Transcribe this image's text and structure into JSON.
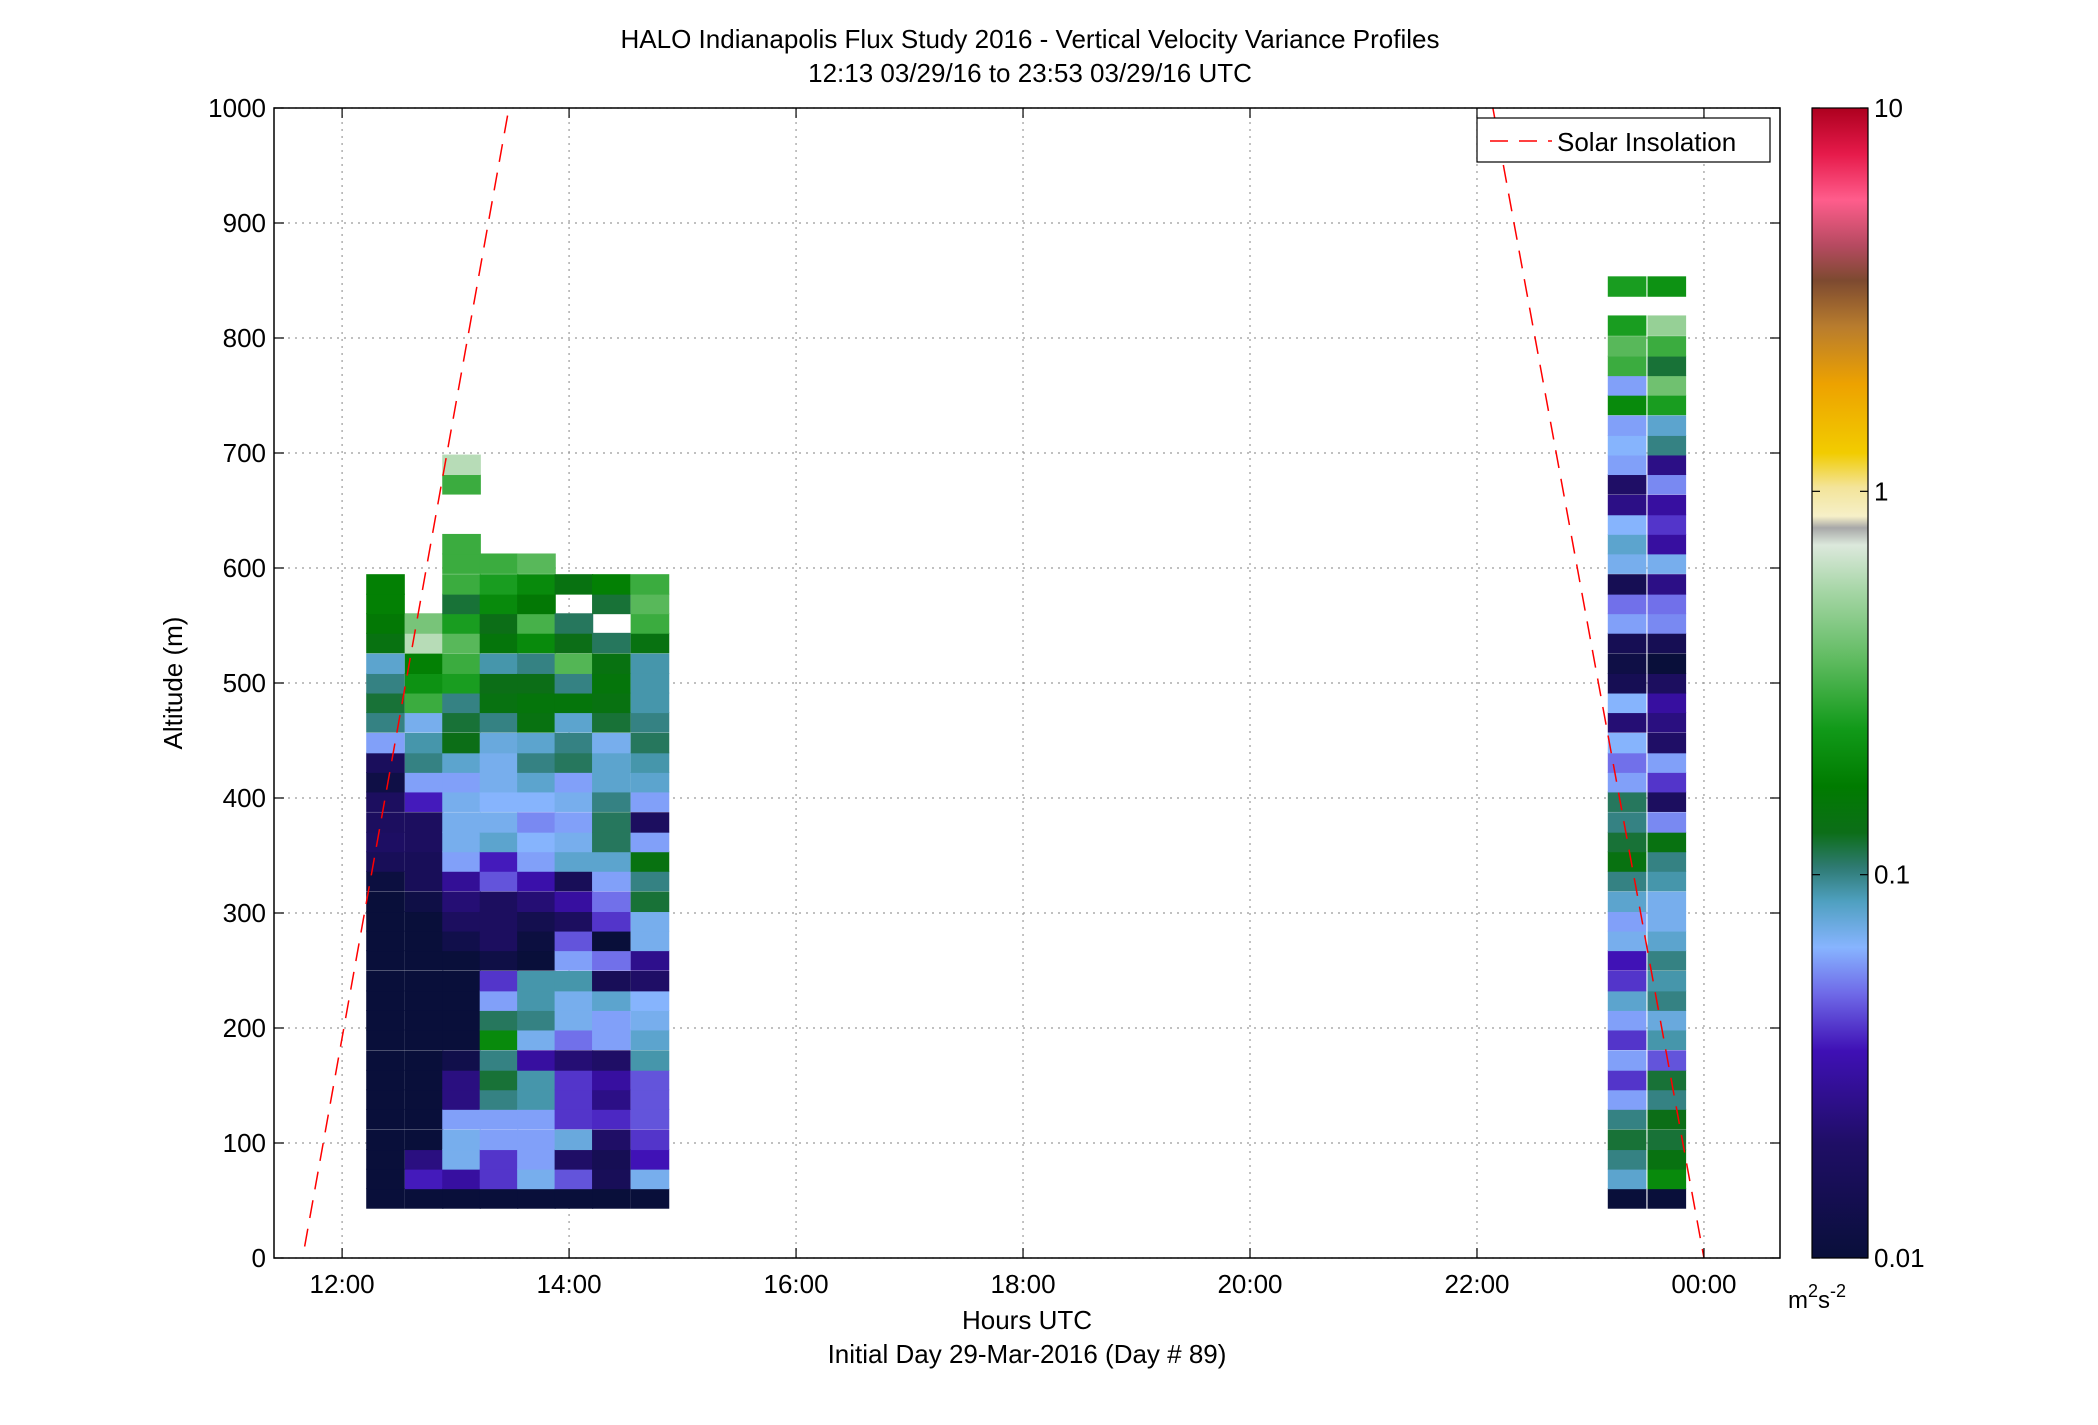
{
  "chart_data": {
    "type": "heatmap",
    "title": "HALO Indianapolis Flux Study 2016 - Vertical Velocity Variance Profiles",
    "subtitle": "12:13 03/29/16 to 23:53 03/29/16  UTC",
    "xlabel": "Hours UTC",
    "xlabel2": "Initial Day 29-Mar-2016 (Day # 89)",
    "ylabel": "Altitude (m)",
    "xlim": [
      11.4,
      24.67
    ],
    "ylim": [
      0,
      1000
    ],
    "xticks": [
      12,
      14,
      16,
      18,
      20,
      22,
      24
    ],
    "xtick_labels": [
      "12:00",
      "14:00",
      "16:00",
      "18:00",
      "20:00",
      "22:00",
      "00:00"
    ],
    "yticks": [
      0,
      100,
      200,
      300,
      400,
      500,
      600,
      700,
      800,
      900,
      1000
    ],
    "ytick_labels": [
      "0",
      "100",
      "200",
      "300",
      "400",
      "500",
      "600",
      "700",
      "800",
      "900",
      "1000"
    ],
    "grid": true,
    "legend": {
      "position": "top-right",
      "entries": [
        "Solar Insolation"
      ]
    },
    "colorbar": {
      "scale": "log",
      "range": [
        0.01,
        10
      ],
      "tick_values": [
        0.01,
        0.1,
        1,
        10
      ],
      "tick_labels": [
        "0.01",
        "0.1",
        "1",
        "10"
      ],
      "unit_base": "m",
      "unit_exp1": "2",
      "unit_mid": "s",
      "unit_exp2": "-2"
    },
    "series": [
      {
        "name": "Solar Insolation",
        "type": "line",
        "style": "dashed",
        "color": "#ff0000",
        "segments": [
          [
            [
              11.67,
              10
            ],
            [
              13.47,
              1000
            ]
          ],
          [
            [
              22.14,
              1000
            ],
            [
              24.0,
              0
            ]
          ]
        ]
      }
    ],
    "altitude_bins_m": [
      52,
      69,
      86,
      103,
      121,
      138,
      155,
      172,
      190,
      207,
      224,
      241,
      259,
      276,
      293,
      310,
      328,
      345,
      362,
      379,
      397,
      414,
      431,
      448,
      466,
      483,
      500,
      517,
      535,
      552,
      569,
      586,
      604,
      621,
      638,
      655,
      673,
      690,
      707,
      724,
      742,
      759,
      776,
      793,
      811,
      828,
      845
    ],
    "profiles": [
      {
        "t": 12.38,
        "v": [
          0.01,
          0.01,
          0.01,
          0.01,
          0.01,
          0.01,
          0.01,
          0.01,
          0.01,
          0.01,
          0.01,
          0.01,
          0.01,
          0.01,
          0.01,
          0.01,
          0.011,
          0.016,
          0.019,
          0.018,
          0.018,
          0.012,
          0.017,
          0.06,
          0.1,
          0.12,
          0.1,
          0.08,
          0.14,
          0.16,
          0.18,
          0.18,
          null,
          null,
          null,
          null,
          null,
          null,
          null,
          null,
          null,
          null,
          null,
          null,
          null,
          null,
          null
        ]
      },
      {
        "t": 12.72,
        "v": [
          0.01,
          0.036,
          0.024,
          0.01,
          0.01,
          0.01,
          0.01,
          0.01,
          0.01,
          0.01,
          0.01,
          0.01,
          0.01,
          0.01,
          0.01,
          0.012,
          0.016,
          0.016,
          0.018,
          0.018,
          0.036,
          0.06,
          0.1,
          0.09,
          0.07,
          0.3,
          0.22,
          0.18,
          0.6,
          0.42,
          null,
          null,
          null,
          null,
          null,
          null,
          null,
          null,
          null,
          null,
          null,
          null,
          null,
          null,
          null,
          null,
          null
        ]
      },
      {
        "t": 13.05,
        "v": [
          0.01,
          0.03,
          0.07,
          0.07,
          0.06,
          0.024,
          0.024,
          0.013,
          0.01,
          0.01,
          0.01,
          0.01,
          0.01,
          0.013,
          0.018,
          0.022,
          0.028,
          0.06,
          0.07,
          0.07,
          0.07,
          0.06,
          0.08,
          0.13,
          0.12,
          0.1,
          0.25,
          0.3,
          0.35,
          0.25,
          0.12,
          0.3,
          0.3,
          0.3,
          null,
          null,
          0.3,
          0.6,
          null,
          null,
          null,
          null,
          null,
          null,
          null,
          null,
          null
        ]
      },
      {
        "t": 13.38,
        "v": [
          0.01,
          0.04,
          0.04,
          0.06,
          0.06,
          0.1,
          0.12,
          0.1,
          0.2,
          0.11,
          0.06,
          0.04,
          0.012,
          0.018,
          0.018,
          0.018,
          0.045,
          0.036,
          0.08,
          0.07,
          0.065,
          0.07,
          0.07,
          0.075,
          0.1,
          0.14,
          0.13,
          0.09,
          0.15,
          0.13,
          0.2,
          0.25,
          0.3,
          null,
          null,
          null,
          null,
          null,
          null,
          null,
          null,
          null,
          null,
          null,
          null,
          null,
          null
        ]
      },
      {
        "t": 13.71,
        "v": [
          0.01,
          0.07,
          0.06,
          0.06,
          0.06,
          0.09,
          0.09,
          0.03,
          0.07,
          0.1,
          0.09,
          0.09,
          0.01,
          0.011,
          0.014,
          0.022,
          0.032,
          0.06,
          0.065,
          0.055,
          0.065,
          0.08,
          0.1,
          0.08,
          0.14,
          0.15,
          0.13,
          0.1,
          0.2,
          0.32,
          0.16,
          0.2,
          0.35,
          null,
          null,
          null,
          null,
          null,
          null,
          null,
          null,
          null,
          null,
          null,
          null,
          null,
          null
        ]
      },
      {
        "t": 14.04,
        "v": [
          0.01,
          0.045,
          0.02,
          0.075,
          0.04,
          0.04,
          0.04,
          0.022,
          0.05,
          0.07,
          0.07,
          0.09,
          0.06,
          0.045,
          0.018,
          0.03,
          0.016,
          0.08,
          0.07,
          0.06,
          0.07,
          0.06,
          0.11,
          0.1,
          0.08,
          0.15,
          0.1,
          0.34,
          0.13,
          0.11,
          null,
          0.14,
          null,
          null,
          null,
          null,
          null,
          null,
          null,
          null,
          null,
          null,
          null,
          null,
          null,
          null,
          null
        ]
      },
      {
        "t": 14.37,
        "v": [
          0.01,
          0.016,
          0.015,
          0.02,
          0.038,
          0.025,
          0.03,
          0.02,
          0.06,
          0.06,
          0.08,
          0.016,
          0.05,
          0.01,
          0.04,
          0.05,
          0.06,
          0.08,
          0.11,
          0.11,
          0.1,
          0.08,
          0.08,
          0.07,
          0.12,
          0.14,
          0.15,
          0.14,
          0.11,
          null,
          0.12,
          0.18,
          null,
          null,
          null,
          null,
          null,
          null,
          null,
          null,
          null,
          null,
          null,
          null,
          null,
          null,
          null
        ]
      },
      {
        "t": 14.71,
        "v": [
          0.01,
          0.07,
          0.035,
          0.04,
          0.045,
          0.045,
          0.045,
          0.09,
          0.08,
          0.07,
          0.065,
          0.02,
          0.026,
          0.07,
          0.07,
          0.12,
          0.1,
          0.14,
          0.06,
          0.018,
          0.06,
          0.08,
          0.09,
          0.11,
          0.1,
          0.09,
          0.09,
          0.09,
          0.14,
          0.3,
          0.35,
          0.3,
          null,
          null,
          null,
          null,
          null,
          null,
          null,
          null,
          null,
          null,
          null,
          null,
          null,
          null,
          null
        ]
      },
      {
        "t": 23.32,
        "v": [
          0.01,
          0.08,
          0.1,
          0.12,
          0.1,
          0.06,
          0.04,
          0.06,
          0.04,
          0.06,
          0.08,
          0.04,
          0.035,
          0.07,
          0.06,
          0.08,
          0.1,
          0.14,
          0.12,
          0.1,
          0.11,
          0.06,
          0.05,
          0.065,
          0.022,
          0.065,
          0.015,
          0.012,
          0.015,
          0.06,
          0.05,
          0.015,
          0.07,
          0.08,
          0.065,
          0.025,
          0.02,
          0.06,
          0.065,
          0.06,
          0.2,
          0.06,
          0.3,
          0.35,
          0.25,
          null,
          0.25
        ]
      },
      {
        "t": 23.67,
        "v": [
          0.01,
          0.2,
          0.14,
          0.12,
          0.13,
          0.1,
          0.12,
          0.045,
          0.09,
          0.075,
          0.1,
          0.09,
          0.1,
          0.08,
          0.07,
          0.07,
          0.09,
          0.1,
          0.14,
          0.055,
          0.018,
          0.04,
          0.06,
          0.02,
          0.024,
          0.03,
          0.018,
          0.01,
          0.015,
          0.055,
          0.05,
          0.025,
          0.07,
          0.03,
          0.04,
          0.03,
          0.055,
          0.025,
          0.1,
          0.08,
          0.25,
          0.4,
          0.12,
          0.3,
          0.5,
          null,
          0.22
        ]
      }
    ]
  }
}
